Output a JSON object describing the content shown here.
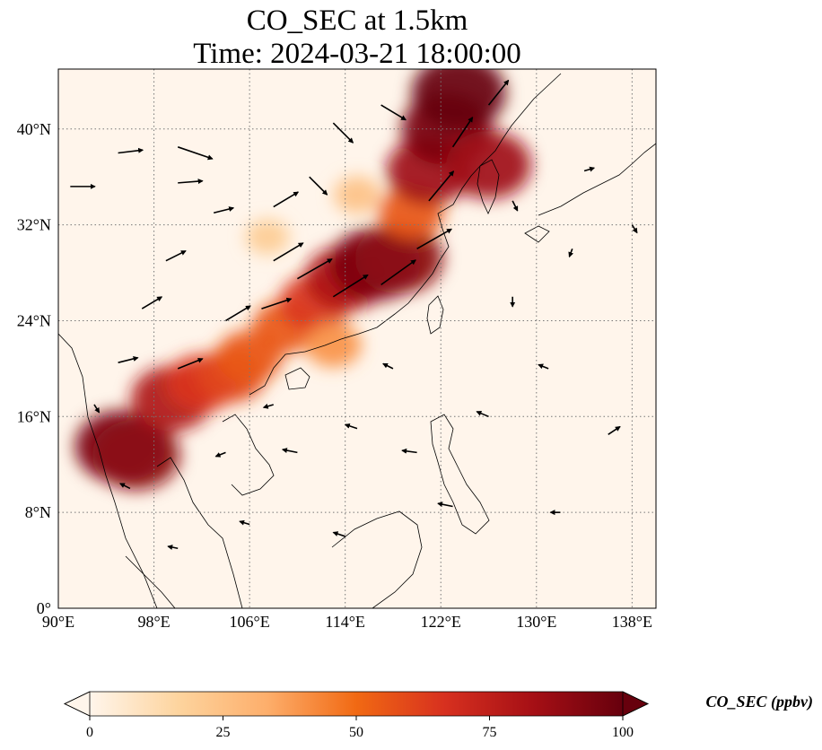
{
  "title_line1": "CO_SEC at 1.5km",
  "title_line2": "Time: 2024-03-21 18:00:00",
  "map": {
    "lon_range": [
      90,
      140
    ],
    "lat_range": [
      0,
      45
    ],
    "lon_ticks": [
      {
        "value": 90,
        "label": "90°E"
      },
      {
        "value": 98,
        "label": "98°E"
      },
      {
        "value": 106,
        "label": "106°E"
      },
      {
        "value": 114,
        "label": "114°E"
      },
      {
        "value": 122,
        "label": "122°E"
      },
      {
        "value": 130,
        "label": "130°E"
      },
      {
        "value": 138,
        "label": "138°E"
      }
    ],
    "lat_ticks": [
      {
        "value": 0,
        "label": "0°"
      },
      {
        "value": 8,
        "label": "8°N"
      },
      {
        "value": 16,
        "label": "16°N"
      },
      {
        "value": 24,
        "label": "24°N"
      },
      {
        "value": 32,
        "label": "32°N"
      },
      {
        "value": 40,
        "label": "40°N"
      }
    ],
    "gridlines": "dotted",
    "background_color": "#fff5eb",
    "plumes": [
      {
        "lon": 95.2,
        "lat": 13.5,
        "value": 95
      },
      {
        "lon": 96.5,
        "lat": 12.8,
        "value": 90
      },
      {
        "lon": 99.5,
        "lat": 17.5,
        "value": 80
      },
      {
        "lon": 102.0,
        "lat": 18.8,
        "value": 65
      },
      {
        "lon": 104.5,
        "lat": 19.5,
        "value": 60
      },
      {
        "lon": 106.0,
        "lat": 21.0,
        "value": 55
      },
      {
        "lon": 109.0,
        "lat": 23.5,
        "value": 55
      },
      {
        "lon": 111.5,
        "lat": 25.5,
        "value": 65
      },
      {
        "lon": 114.0,
        "lat": 27.5,
        "value": 80
      },
      {
        "lon": 116.5,
        "lat": 28.7,
        "value": 95
      },
      {
        "lon": 118.5,
        "lat": 29.2,
        "value": 90
      },
      {
        "lon": 119.5,
        "lat": 33.0,
        "value": 55
      },
      {
        "lon": 121.0,
        "lat": 36.5,
        "value": 85
      },
      {
        "lon": 122.5,
        "lat": 40.0,
        "value": 95
      },
      {
        "lon": 123.5,
        "lat": 43.0,
        "value": 100
      },
      {
        "lon": 126.0,
        "lat": 37.0,
        "value": 85
      },
      {
        "lon": 113.0,
        "lat": 22.0,
        "value": 40
      },
      {
        "lon": 107.5,
        "lat": 31.0,
        "value": 20
      },
      {
        "lon": 115.0,
        "lat": 34.5,
        "value": 25
      }
    ],
    "wind_arrows": [
      {
        "lon": 91,
        "lat": 35.2,
        "u": 2.5,
        "v": 0.0
      },
      {
        "lon": 95,
        "lat": 38.0,
        "u": 2.5,
        "v": 0.3
      },
      {
        "lon": 100,
        "lat": 38.5,
        "u": 3.5,
        "v": -1.2
      },
      {
        "lon": 100,
        "lat": 35.5,
        "u": 2.5,
        "v": 0.2
      },
      {
        "lon": 103,
        "lat": 33.0,
        "u": 2.0,
        "v": 0.5
      },
      {
        "lon": 108,
        "lat": 33.5,
        "u": 2.5,
        "v": 1.5
      },
      {
        "lon": 108,
        "lat": 29.0,
        "u": 3.0,
        "v": 1.8
      },
      {
        "lon": 110,
        "lat": 27.5,
        "u": 3.5,
        "v": 2.0
      },
      {
        "lon": 113,
        "lat": 26.0,
        "u": 3.5,
        "v": 2.2
      },
      {
        "lon": 117,
        "lat": 27.0,
        "u": 3.5,
        "v": 2.5
      },
      {
        "lon": 120,
        "lat": 30.0,
        "u": 3.5,
        "v": 2.0
      },
      {
        "lon": 121,
        "lat": 34.0,
        "u": 2.5,
        "v": 3.0
      },
      {
        "lon": 123,
        "lat": 38.5,
        "u": 2.0,
        "v": 3.0
      },
      {
        "lon": 126,
        "lat": 42.0,
        "u": 2.0,
        "v": 2.5
      },
      {
        "lon": 117,
        "lat": 42.0,
        "u": 2.5,
        "v": -1.5
      },
      {
        "lon": 113,
        "lat": 40.5,
        "u": 2.0,
        "v": -2.0
      },
      {
        "lon": 111,
        "lat": 36.0,
        "u": 1.8,
        "v": -1.8
      },
      {
        "lon": 107,
        "lat": 25.0,
        "u": 3.0,
        "v": 1.0
      },
      {
        "lon": 104,
        "lat": 24.0,
        "u": 2.5,
        "v": 1.5
      },
      {
        "lon": 100,
        "lat": 20.0,
        "u": 2.5,
        "v": 1.0
      },
      {
        "lon": 97,
        "lat": 25.0,
        "u": 2.0,
        "v": 1.2
      },
      {
        "lon": 95,
        "lat": 20.5,
        "u": 2.0,
        "v": 0.5
      },
      {
        "lon": 93,
        "lat": 17.0,
        "u": 0.5,
        "v": -0.8
      },
      {
        "lon": 110,
        "lat": 13.0,
        "u": -1.5,
        "v": 0.3
      },
      {
        "lon": 115,
        "lat": 15.0,
        "u": -1.2,
        "v": 0.4
      },
      {
        "lon": 120,
        "lat": 13.0,
        "u": -1.5,
        "v": 0.2
      },
      {
        "lon": 126,
        "lat": 16.0,
        "u": -1.2,
        "v": 0.5
      },
      {
        "lon": 131,
        "lat": 20.0,
        "u": -1.0,
        "v": 0.4
      },
      {
        "lon": 136,
        "lat": 14.5,
        "u": 1.2,
        "v": 0.8
      },
      {
        "lon": 132,
        "lat": 8.0,
        "u": -1.0,
        "v": 0.0
      },
      {
        "lon": 123,
        "lat": 8.5,
        "u": -1.5,
        "v": 0.3
      },
      {
        "lon": 114,
        "lat": 6.0,
        "u": -1.2,
        "v": 0.4
      },
      {
        "lon": 106,
        "lat": 7.0,
        "u": -1.0,
        "v": 0.3
      },
      {
        "lon": 100,
        "lat": 5.0,
        "u": -1.0,
        "v": 0.2
      },
      {
        "lon": 96,
        "lat": 10.0,
        "u": -1.0,
        "v": 0.5
      },
      {
        "lon": 128,
        "lat": 26.0,
        "u": 0.0,
        "v": -1.0
      },
      {
        "lon": 133,
        "lat": 30.0,
        "u": -0.3,
        "v": -0.8
      },
      {
        "lon": 138,
        "lat": 32.0,
        "u": 0.5,
        "v": -0.8
      },
      {
        "lon": 134,
        "lat": 36.5,
        "u": 1.0,
        "v": 0.3
      },
      {
        "lon": 128,
        "lat": 34.0,
        "u": 0.5,
        "v": -1.0
      },
      {
        "lon": 118,
        "lat": 20.0,
        "u": -1.0,
        "v": 0.5
      },
      {
        "lon": 108,
        "lat": 17.0,
        "u": -1.0,
        "v": -0.3
      },
      {
        "lon": 104,
        "lat": 13.0,
        "u": -1.0,
        "v": -0.4
      },
      {
        "lon": 99,
        "lat": 29.0,
        "u": 2.0,
        "v": 1.0
      }
    ]
  },
  "colorbar": {
    "label": "CO_SEC (ppbv)",
    "min": 0,
    "max": 100,
    "ticks": [
      {
        "value": 0,
        "label": "0"
      },
      {
        "value": 25,
        "label": "25"
      },
      {
        "value": 50,
        "label": "50"
      },
      {
        "value": 75,
        "label": "75"
      },
      {
        "value": 100,
        "label": "100"
      }
    ],
    "colors": [
      "#fff5eb",
      "#fdd49e",
      "#fdae6b",
      "#f16913",
      "#d7301f",
      "#a50f15",
      "#67000d"
    ]
  }
}
